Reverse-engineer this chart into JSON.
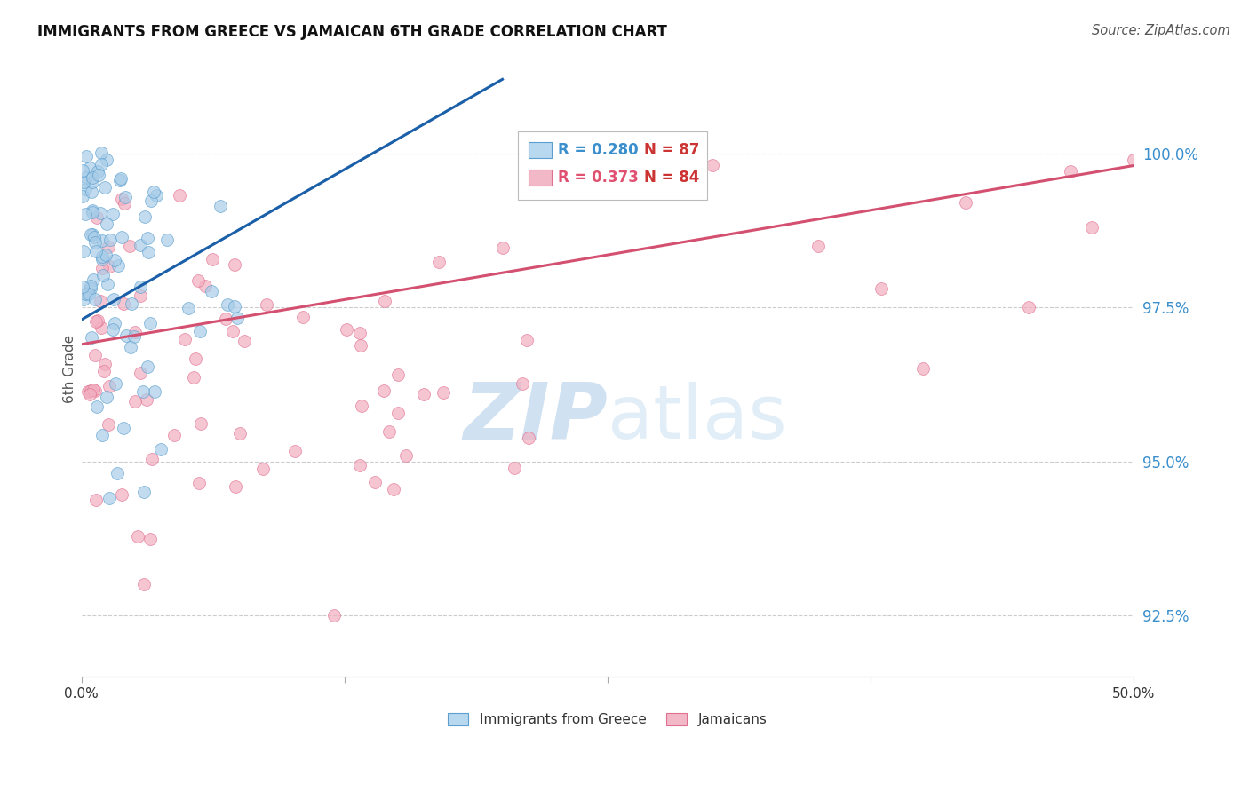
{
  "title": "IMMIGRANTS FROM GREECE VS JAMAICAN 6TH GRADE CORRELATION CHART",
  "source": "Source: ZipAtlas.com",
  "ylabel": "6th Grade",
  "ytick_values": [
    92.5,
    95.0,
    97.5,
    100.0
  ],
  "ytick_labels": [
    "92.5%",
    "95.0%",
    "97.5%",
    "100.0%"
  ],
  "xlim": [
    0.0,
    50.0
  ],
  "ylim": [
    91.5,
    101.5
  ],
  "legend_label_blue": "Immigrants from Greece",
  "legend_label_pink": "Jamaicans",
  "blue_color": "#a8cce8",
  "pink_color": "#f2afc0",
  "blue_edge_color": "#5a9fcf",
  "pink_edge_color": "#e07090",
  "blue_line_color": "#1a5fa8",
  "pink_line_color": "#d45070",
  "background_color": "#ffffff",
  "watermark_zip": "ZIP",
  "watermark_atlas": "atlas",
  "blue_trend_x": [
    0.0,
    20.0
  ],
  "blue_trend_y": [
    97.3,
    101.2
  ],
  "pink_trend_x": [
    0.0,
    50.0
  ],
  "pink_trend_y": [
    96.9,
    99.8
  ]
}
